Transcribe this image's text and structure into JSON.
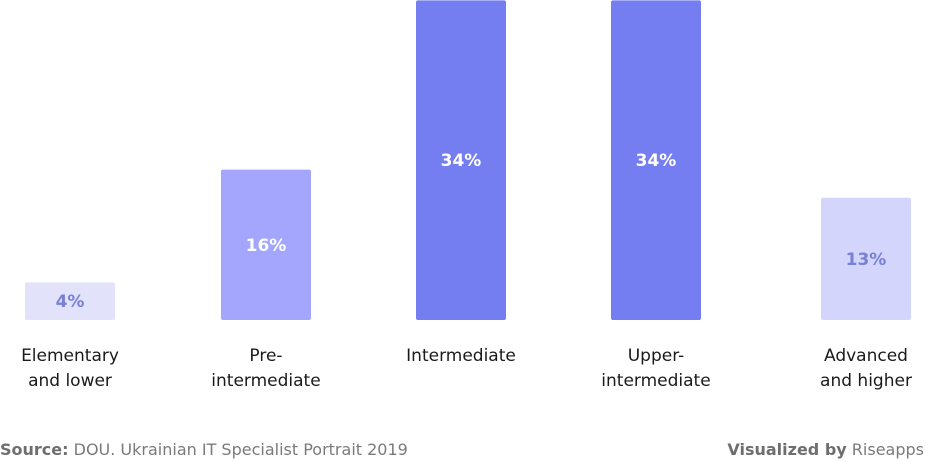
{
  "chart_data": {
    "type": "bar",
    "categories": [
      [
        "Elementary",
        "and lower"
      ],
      [
        "Pre-",
        "intermediate"
      ],
      [
        "Intermediate"
      ],
      [
        "Upper-",
        "intermediate"
      ],
      [
        "Advanced",
        "and higher"
      ]
    ],
    "values": [
      4,
      16,
      34,
      34,
      13
    ],
    "value_labels": [
      "4%",
      "16%",
      "34%",
      "34%",
      "13%"
    ],
    "bar_colors": [
      "#e2e3fb",
      "#a3a6fc",
      "#757ef0",
      "#757ef0",
      "#d3d5fc"
    ],
    "label_colors": [
      "#7880d4",
      "#ffffff",
      "#ffffff",
      "#ffffff",
      "#7880d4"
    ],
    "title": "",
    "xlabel": "",
    "ylabel": "",
    "grid": false,
    "legend": "none"
  },
  "footer": {
    "source_label": "Source:",
    "source_text": "DOU. Ukrainian IT Specialist Portrait 2019",
    "credit_label": "Visualized by",
    "credit_text": "Riseapps"
  },
  "colors": {
    "axis_text": "#1a1a1a",
    "footer_text": "#7a7a7a"
  }
}
